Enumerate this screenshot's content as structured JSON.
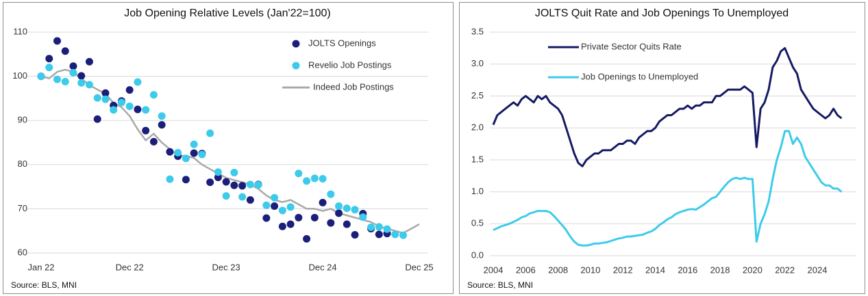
{
  "chart_data": [
    {
      "type": "scatter",
      "title": "Job Opening Relative Levels (Jan'22=100)",
      "source": "Source: BLS, MNI",
      "x": [
        0,
        1,
        2,
        3,
        4,
        5,
        6,
        7,
        8,
        9,
        10,
        11,
        12,
        13,
        14,
        15,
        16,
        17,
        18,
        19,
        20,
        21,
        22,
        23,
        24,
        25,
        26,
        27,
        28,
        29,
        30,
        31,
        32,
        33,
        34,
        35,
        36,
        37,
        38,
        39,
        40,
        41,
        42,
        43,
        44,
        45,
        46,
        47
      ],
      "xlim": [
        0,
        47
      ],
      "xticks": [
        {
          "value": 0,
          "label": "Jan 22"
        },
        {
          "value": 11,
          "label": "Dec 22"
        },
        {
          "value": 23,
          "label": "Dec 23"
        },
        {
          "value": 35,
          "label": "Dec 24"
        },
        {
          "value": 47,
          "label": "Dec 25"
        }
      ],
      "ylim": [
        60,
        110
      ],
      "yticks": [
        60,
        70,
        80,
        90,
        100,
        110
      ],
      "grid": true,
      "legend": "upper right",
      "series": [
        {
          "name": "JOLTS Openings",
          "type": "scatter",
          "color": "#1b1f7a",
          "values": [
            100,
            104,
            108,
            105.7,
            102.3,
            100.1,
            103.3,
            90.3,
            96.2,
            93.4,
            94.4,
            96.9,
            92.5,
            87.7,
            85.2,
            89,
            82.9,
            81.9,
            76.6,
            82.6,
            82.5,
            76,
            77.1,
            76.1,
            75.3,
            75.2,
            72,
            75.5,
            67.9,
            70.6,
            66,
            66.5,
            68,
            63.2,
            68,
            71.4,
            66.8,
            69,
            66.5,
            64.1,
            68.9,
            65.5,
            64.2,
            64.4,
            null,
            null,
            null,
            null
          ]
        },
        {
          "name": "Revelio Job Postings",
          "type": "scatter",
          "color": "#3ccbea",
          "values": [
            100,
            102,
            99.3,
            98.8,
            100.8,
            98.5,
            98.1,
            95.1,
            94.8,
            92.4,
            94.1,
            93.2,
            98.7,
            92.4,
            95.8,
            91,
            76.7,
            82.7,
            81.4,
            84.6,
            82.3,
            87.1,
            78.3,
            72.9,
            78.2,
            72.7,
            75.5,
            75.4,
            70.8,
            72.5,
            69.6,
            70.4,
            78,
            76.3,
            76.9,
            76.8,
            73.3,
            70.6,
            70.1,
            69.8,
            68.1,
            65.8,
            65.9,
            65.4,
            64.2,
            64,
            null,
            null
          ]
        },
        {
          "name": "Indeed Job Postings",
          "type": "line",
          "color": "#a9a9a9",
          "values": [
            100,
            99.5,
            101,
            101.5,
            101,
            99.5,
            98,
            97,
            96,
            94,
            93,
            91,
            88,
            85.5,
            87,
            85,
            83.5,
            82,
            82,
            81.5,
            80,
            79,
            78,
            77,
            76.5,
            76,
            75.5,
            74.5,
            73,
            72,
            71.5,
            72,
            71,
            70,
            70,
            69.5,
            70,
            69,
            68.5,
            68,
            67.5,
            67,
            66,
            65.5,
            65,
            64.5,
            65.5,
            66.5
          ]
        }
      ]
    },
    {
      "type": "line",
      "title": "JOLTS Quit Rate and Job Openings To Unemployed",
      "source": "Source: BLS, MNI",
      "x": [
        2004,
        2004.25,
        2004.5,
        2004.75,
        2005,
        2005.25,
        2005.5,
        2005.75,
        2006,
        2006.25,
        2006.5,
        2006.75,
        2007,
        2007.25,
        2007.5,
        2007.75,
        2008,
        2008.25,
        2008.5,
        2008.75,
        2009,
        2009.25,
        2009.5,
        2009.75,
        2010,
        2010.25,
        2010.5,
        2010.75,
        2011,
        2011.25,
        2011.5,
        2011.75,
        2012,
        2012.25,
        2012.5,
        2012.75,
        2013,
        2013.25,
        2013.5,
        2013.75,
        2014,
        2014.25,
        2014.5,
        2014.75,
        2015,
        2015.25,
        2015.5,
        2015.75,
        2016,
        2016.25,
        2016.5,
        2016.75,
        2017,
        2017.25,
        2017.5,
        2017.75,
        2018,
        2018.25,
        2018.5,
        2018.75,
        2019,
        2019.25,
        2019.5,
        2019.75,
        2020,
        2020.25,
        2020.5,
        2020.75,
        2021,
        2021.25,
        2021.5,
        2021.75,
        2022,
        2022.25,
        2022.5,
        2022.75,
        2023,
        2023.25,
        2023.5,
        2023.75,
        2024,
        2024.25,
        2024.5,
        2024.75,
        2025,
        2025.25,
        2025.5
      ],
      "xlim": [
        2004,
        2026.2
      ],
      "xticks": [
        2004,
        2006,
        2008,
        2010,
        2012,
        2014,
        2016,
        2018,
        2020,
        2022,
        2024
      ],
      "ylim": [
        0,
        3.5
      ],
      "yticks": [
        {
          "value": 0,
          "label": "0.0"
        },
        0.5,
        {
          "value": 1,
          "label": "1.0"
        },
        1.5,
        {
          "value": 2,
          "label": "2.0"
        },
        2.5,
        {
          "value": 3,
          "label": "3.0"
        },
        3.5
      ],
      "grid": true,
      "legend": "upper left",
      "series": [
        {
          "name": "Private Sector Quits Rate",
          "color": "#151a63",
          "values": [
            2.05,
            2.2,
            2.25,
            2.3,
            2.35,
            2.4,
            2.35,
            2.45,
            2.5,
            2.45,
            2.4,
            2.5,
            2.45,
            2.5,
            2.4,
            2.35,
            2.3,
            2.2,
            2.0,
            1.8,
            1.6,
            1.45,
            1.4,
            1.5,
            1.55,
            1.6,
            1.6,
            1.65,
            1.65,
            1.65,
            1.7,
            1.75,
            1.75,
            1.8,
            1.8,
            1.75,
            1.85,
            1.9,
            1.95,
            1.95,
            2.0,
            2.1,
            2.15,
            2.2,
            2.2,
            2.25,
            2.3,
            2.3,
            2.35,
            2.3,
            2.35,
            2.35,
            2.4,
            2.4,
            2.4,
            2.5,
            2.5,
            2.55,
            2.6,
            2.6,
            2.6,
            2.6,
            2.65,
            2.6,
            2.55,
            1.7,
            2.3,
            2.4,
            2.6,
            2.95,
            3.05,
            3.2,
            3.25,
            3.1,
            2.95,
            2.85,
            2.6,
            2.5,
            2.4,
            2.3,
            2.25,
            2.2,
            2.15,
            2.2,
            2.3,
            2.2,
            2.15
          ]
        },
        {
          "name": "Job Openings to Unemployed",
          "color": "#3ccbea",
          "values": [
            0.4,
            0.43,
            0.46,
            0.48,
            0.5,
            0.53,
            0.56,
            0.6,
            0.62,
            0.66,
            0.68,
            0.7,
            0.7,
            0.7,
            0.68,
            0.62,
            0.55,
            0.48,
            0.4,
            0.3,
            0.22,
            0.17,
            0.16,
            0.16,
            0.17,
            0.19,
            0.19,
            0.2,
            0.21,
            0.23,
            0.25,
            0.27,
            0.28,
            0.3,
            0.3,
            0.31,
            0.32,
            0.33,
            0.36,
            0.38,
            0.42,
            0.48,
            0.52,
            0.57,
            0.6,
            0.65,
            0.68,
            0.7,
            0.72,
            0.73,
            0.72,
            0.76,
            0.8,
            0.85,
            0.9,
            0.92,
            1.0,
            1.08,
            1.15,
            1.2,
            1.22,
            1.2,
            1.22,
            1.2,
            1.2,
            0.22,
            0.5,
            0.65,
            0.85,
            1.2,
            1.5,
            1.7,
            1.95,
            1.95,
            1.75,
            1.85,
            1.75,
            1.55,
            1.45,
            1.35,
            1.25,
            1.15,
            1.1,
            1.1,
            1.05,
            1.05,
            1.0
          ]
        }
      ]
    }
  ]
}
